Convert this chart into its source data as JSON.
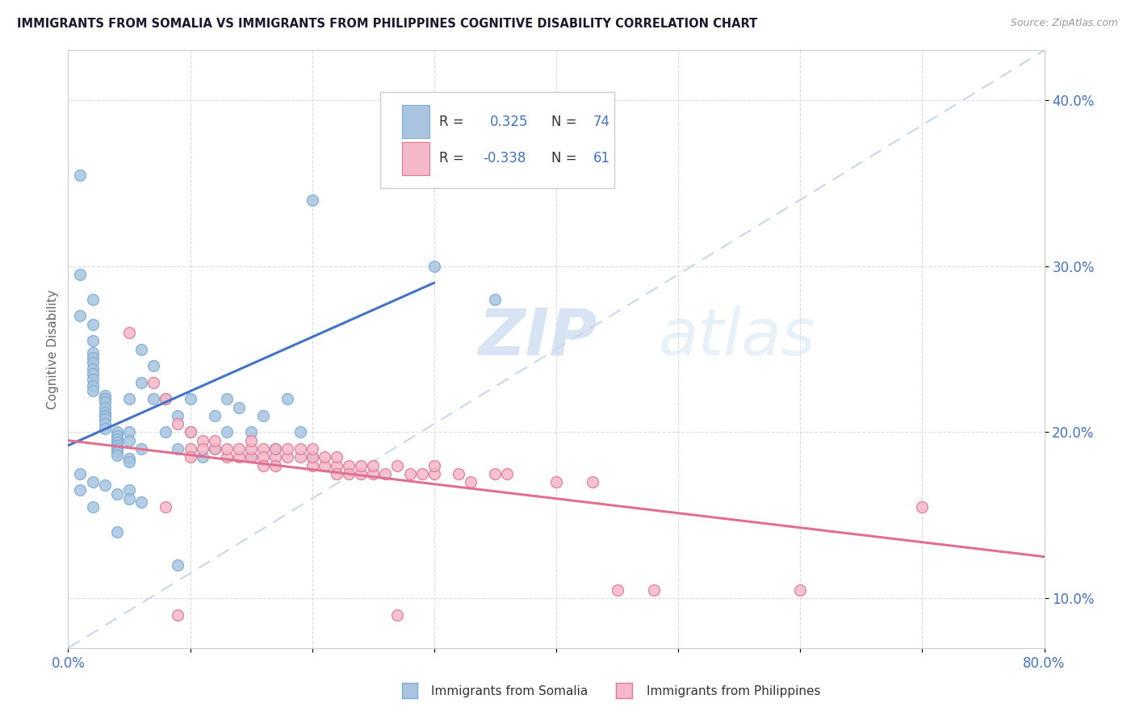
{
  "title": "IMMIGRANTS FROM SOMALIA VS IMMIGRANTS FROM PHILIPPINES COGNITIVE DISABILITY CORRELATION CHART",
  "source": "Source: ZipAtlas.com",
  "ylabel": "Cognitive Disability",
  "xlim": [
    0.0,
    0.8
  ],
  "ylim": [
    0.07,
    0.43
  ],
  "x_ticks": [
    0.0,
    0.1,
    0.2,
    0.3,
    0.4,
    0.5,
    0.6,
    0.7,
    0.8
  ],
  "x_tick_labels": [
    "0.0%",
    "",
    "",
    "",
    "",
    "",
    "",
    "",
    "80.0%"
  ],
  "y_ticks": [
    0.1,
    0.2,
    0.3,
    0.4
  ],
  "y_tick_labels": [
    "10.0%",
    "20.0%",
    "30.0%",
    "40.0%"
  ],
  "somalia_color": "#aac4e0",
  "somalia_edge": "#7aaed6",
  "philippines_color": "#f4b8c8",
  "philippines_edge": "#e07898",
  "somalia_line_color": "#4472c4",
  "philippines_line_color": "#e07090",
  "trend_dashed_color": "#c8d8f0",
  "watermark_zip": "ZIP",
  "watermark_atlas": "atlas",
  "legend_R_color": "#4472c4",
  "tick_color": "#4472c4",
  "grid_color": "#d8d8d8",
  "somalia_scatter": [
    [
      0.01,
      0.355
    ],
    [
      0.01,
      0.295
    ],
    [
      0.02,
      0.28
    ],
    [
      0.01,
      0.27
    ],
    [
      0.02,
      0.265
    ],
    [
      0.02,
      0.255
    ],
    [
      0.02,
      0.248
    ],
    [
      0.02,
      0.245
    ],
    [
      0.02,
      0.242
    ],
    [
      0.02,
      0.238
    ],
    [
      0.02,
      0.235
    ],
    [
      0.02,
      0.232
    ],
    [
      0.02,
      0.228
    ],
    [
      0.02,
      0.225
    ],
    [
      0.03,
      0.222
    ],
    [
      0.03,
      0.22
    ],
    [
      0.03,
      0.218
    ],
    [
      0.03,
      0.215
    ],
    [
      0.03,
      0.212
    ],
    [
      0.03,
      0.21
    ],
    [
      0.03,
      0.208
    ],
    [
      0.03,
      0.205
    ],
    [
      0.03,
      0.202
    ],
    [
      0.04,
      0.2
    ],
    [
      0.04,
      0.198
    ],
    [
      0.04,
      0.196
    ],
    [
      0.04,
      0.194
    ],
    [
      0.04,
      0.192
    ],
    [
      0.04,
      0.19
    ],
    [
      0.04,
      0.188
    ],
    [
      0.04,
      0.186
    ],
    [
      0.05,
      0.184
    ],
    [
      0.05,
      0.182
    ],
    [
      0.05,
      0.2
    ],
    [
      0.05,
      0.195
    ],
    [
      0.05,
      0.22
    ],
    [
      0.06,
      0.19
    ],
    [
      0.06,
      0.23
    ],
    [
      0.06,
      0.25
    ],
    [
      0.07,
      0.22
    ],
    [
      0.07,
      0.24
    ],
    [
      0.08,
      0.22
    ],
    [
      0.08,
      0.2
    ],
    [
      0.09,
      0.21
    ],
    [
      0.09,
      0.19
    ],
    [
      0.1,
      0.22
    ],
    [
      0.1,
      0.2
    ],
    [
      0.11,
      0.185
    ],
    [
      0.12,
      0.21
    ],
    [
      0.12,
      0.19
    ],
    [
      0.13,
      0.22
    ],
    [
      0.13,
      0.2
    ],
    [
      0.14,
      0.215
    ],
    [
      0.15,
      0.2
    ],
    [
      0.15,
      0.185
    ],
    [
      0.16,
      0.21
    ],
    [
      0.17,
      0.19
    ],
    [
      0.18,
      0.22
    ],
    [
      0.19,
      0.2
    ],
    [
      0.2,
      0.185
    ],
    [
      0.01,
      0.165
    ],
    [
      0.02,
      0.155
    ],
    [
      0.04,
      0.14
    ],
    [
      0.05,
      0.165
    ],
    [
      0.2,
      0.34
    ],
    [
      0.3,
      0.3
    ],
    [
      0.35,
      0.28
    ],
    [
      0.01,
      0.175
    ],
    [
      0.02,
      0.17
    ],
    [
      0.03,
      0.168
    ],
    [
      0.04,
      0.163
    ],
    [
      0.05,
      0.16
    ],
    [
      0.06,
      0.158
    ],
    [
      0.09,
      0.12
    ]
  ],
  "philippines_scatter": [
    [
      0.05,
      0.26
    ],
    [
      0.07,
      0.23
    ],
    [
      0.08,
      0.22
    ],
    [
      0.09,
      0.205
    ],
    [
      0.1,
      0.19
    ],
    [
      0.1,
      0.185
    ],
    [
      0.1,
      0.2
    ],
    [
      0.11,
      0.195
    ],
    [
      0.11,
      0.19
    ],
    [
      0.12,
      0.19
    ],
    [
      0.12,
      0.195
    ],
    [
      0.13,
      0.185
    ],
    [
      0.13,
      0.19
    ],
    [
      0.14,
      0.185
    ],
    [
      0.14,
      0.19
    ],
    [
      0.15,
      0.185
    ],
    [
      0.15,
      0.19
    ],
    [
      0.15,
      0.195
    ],
    [
      0.16,
      0.19
    ],
    [
      0.16,
      0.185
    ],
    [
      0.16,
      0.18
    ],
    [
      0.17,
      0.185
    ],
    [
      0.17,
      0.19
    ],
    [
      0.17,
      0.18
    ],
    [
      0.18,
      0.185
    ],
    [
      0.18,
      0.19
    ],
    [
      0.19,
      0.185
    ],
    [
      0.19,
      0.19
    ],
    [
      0.2,
      0.18
    ],
    [
      0.2,
      0.185
    ],
    [
      0.2,
      0.19
    ],
    [
      0.21,
      0.18
    ],
    [
      0.21,
      0.185
    ],
    [
      0.22,
      0.18
    ],
    [
      0.22,
      0.185
    ],
    [
      0.22,
      0.175
    ],
    [
      0.23,
      0.18
    ],
    [
      0.23,
      0.175
    ],
    [
      0.24,
      0.175
    ],
    [
      0.24,
      0.18
    ],
    [
      0.25,
      0.175
    ],
    [
      0.25,
      0.18
    ],
    [
      0.26,
      0.175
    ],
    [
      0.27,
      0.18
    ],
    [
      0.28,
      0.175
    ],
    [
      0.29,
      0.175
    ],
    [
      0.3,
      0.175
    ],
    [
      0.3,
      0.18
    ],
    [
      0.32,
      0.175
    ],
    [
      0.33,
      0.17
    ],
    [
      0.35,
      0.175
    ],
    [
      0.36,
      0.175
    ],
    [
      0.4,
      0.17
    ],
    [
      0.43,
      0.17
    ],
    [
      0.45,
      0.105
    ],
    [
      0.48,
      0.105
    ],
    [
      0.6,
      0.105
    ],
    [
      0.7,
      0.155
    ],
    [
      0.09,
      0.09
    ],
    [
      0.27,
      0.09
    ],
    [
      0.08,
      0.155
    ]
  ],
  "somalia_line_x": [
    0.0,
    0.3
  ],
  "somalia_line_y": [
    0.192,
    0.29
  ],
  "philippines_line_x": [
    0.0,
    0.8
  ],
  "philippines_line_y": [
    0.195,
    0.125
  ]
}
